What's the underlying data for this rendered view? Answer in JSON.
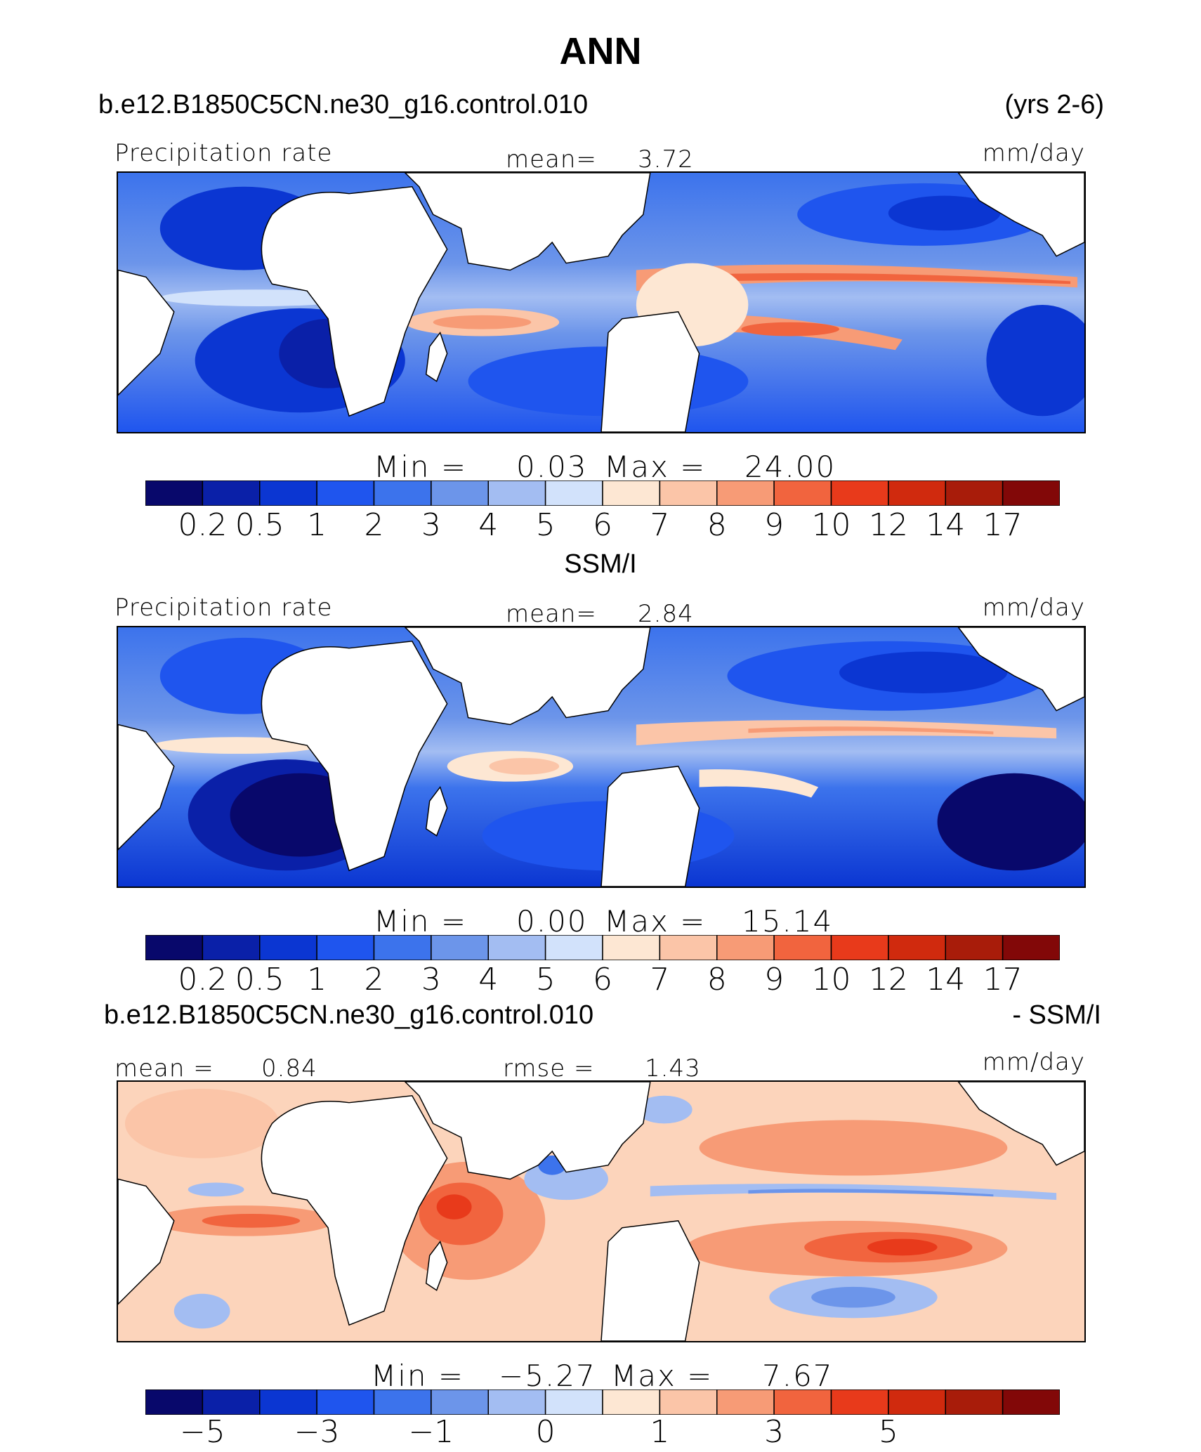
{
  "figure": {
    "title": "ANN",
    "case_name": "b.e12.B1850C5CN.ne30_g16.control.010",
    "years": "(yrs 2-6)",
    "diff_case_name": "b.e12.B1850C5CN.ne30_g16.control.010",
    "diff_suffix": "- SSM/I",
    "obs_name": "SSM/I"
  },
  "colors": {
    "abs_scale": [
      "#08086b",
      "#0a20a8",
      "#0b36d2",
      "#1f55ee",
      "#3c73ec",
      "#6c95ea",
      "#a3bdf2",
      "#d2e2fb",
      "#fde7d3",
      "#fbc5a8",
      "#f79b76",
      "#f1643e",
      "#e83a1b",
      "#d02a0e",
      "#a81c0a",
      "#820808"
    ],
    "diff_scale": [
      "#08086b",
      "#0a20a8",
      "#0b36d2",
      "#1f55ee",
      "#3c73ec",
      "#6c95ea",
      "#a3bdf2",
      "#d2e2fb",
      "#fde7d3",
      "#fbc5a8",
      "#f79b76",
      "#f1643e",
      "#e83a1b",
      "#d02a0e",
      "#a81c0a",
      "#820808"
    ],
    "land": "#ffffff",
    "coast": "#000000"
  },
  "panels": [
    {
      "id": "model",
      "variable": "Precipitation rate",
      "mean_label": "mean=",
      "mean_value": "3.72",
      "units": "mm/day",
      "min_label": "Min  =",
      "min_value": "0.03",
      "max_label": "Max  =",
      "max_value": "24.00",
      "ticks": [
        "0.2",
        "0.5",
        "1",
        "2",
        "3",
        "4",
        "5",
        "6",
        "7",
        "8",
        "9",
        "10",
        "12",
        "14",
        "17"
      ]
    },
    {
      "id": "obs",
      "variable": "Precipitation rate",
      "mean_label": "mean=",
      "mean_value": "2.84",
      "units": "mm/day",
      "min_label": "Min  =",
      "min_value": "0.00",
      "max_label": "Max  =",
      "max_value": "15.14",
      "ticks": [
        "0.2",
        "0.5",
        "1",
        "2",
        "3",
        "4",
        "5",
        "6",
        "7",
        "8",
        "9",
        "10",
        "12",
        "14",
        "17"
      ]
    },
    {
      "id": "diff",
      "mean_label": "mean  =",
      "mean_value": "0.84",
      "rmse_label": "rmse  =",
      "rmse_value": "1.43",
      "units": "mm/day",
      "min_label": "Min  =",
      "min_value": "−5.27",
      "max_label": "Max  =",
      "max_value": "7.67",
      "ticks": [
        "−5",
        "",
        "−3",
        "",
        "−1",
        "",
        "0",
        "",
        "1",
        "",
        "3",
        "",
        "5",
        "",
        ""
      ]
    }
  ]
}
